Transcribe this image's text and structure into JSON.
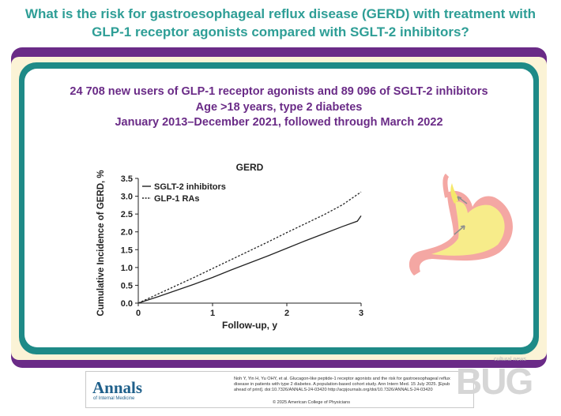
{
  "header": {
    "title_line1": "What is the risk for gastroesophageal reflux disease (GERD) with treatment with",
    "title_line2": "GLP-1 receptor agonists compared with SGLT-2 inhibitors?"
  },
  "study": {
    "line1": "24 708 new users of GLP-1 receptor agonists and 89 096 of SGLT-2 inhibitors",
    "line2": "Age >18 years, type 2 diabetes",
    "line3": "January 2013–December 2021, followed through March 2022"
  },
  "chart_data": {
    "type": "line",
    "title": "GERD",
    "xlabel": "Follow-up, y",
    "ylabel": "Cumulative Incidence of GERD, %",
    "xlim": [
      0,
      3
    ],
    "ylim": [
      0,
      3.5
    ],
    "x_ticks": [
      "0",
      "1",
      "2",
      "3"
    ],
    "y_ticks": [
      "0.0",
      "0.5",
      "1.0",
      "1.5",
      "2.0",
      "2.5",
      "3.0",
      "3.5"
    ],
    "grid": false,
    "legend_position": "top-left",
    "series": [
      {
        "name": "SGLT-2 inhibitors",
        "style": "solid",
        "x": [
          0,
          0.25,
          0.5,
          0.75,
          1.0,
          1.25,
          1.5,
          1.75,
          2.0,
          2.25,
          2.5,
          2.75,
          2.95,
          3.0
        ],
        "y": [
          0,
          0.17,
          0.35,
          0.53,
          0.72,
          0.93,
          1.13,
          1.33,
          1.54,
          1.75,
          1.95,
          2.15,
          2.3,
          2.45
        ]
      },
      {
        "name": "GLP-1 RAs",
        "style": "dashed",
        "x": [
          0,
          0.25,
          0.5,
          0.75,
          1.0,
          1.25,
          1.5,
          1.75,
          2.0,
          2.25,
          2.5,
          2.75,
          3.0
        ],
        "y": [
          0,
          0.24,
          0.48,
          0.72,
          0.97,
          1.22,
          1.47,
          1.72,
          1.98,
          2.23,
          2.48,
          2.76,
          3.12
        ]
      }
    ]
  },
  "footer": {
    "journal_name": "Annals",
    "journal_sub": "of Internal Medicine",
    "citation": "Noh Y, Yin H, Yu OHY, et al. Glucagon-like peptide-1 receptor agonists and the risk for gastroesophageal reflux disease in patients with type 2 diabetes. A population-based cohort study. Ann Intern Med. 15 July 2025. [Epub ahead of print]. doi:10.7326/ANNALS-24-03420 http://acpjournals.org/doi/10.7326/ANNALS-24-03420",
    "copyright": "© 2025 American College of Physicians"
  },
  "watermark": {
    "sub": "cultural news",
    "main": "BUG"
  },
  "colors": {
    "teal": "#2e9e96",
    "purple": "#6a2b87",
    "frame_teal": "#1e8a87",
    "cream": "#fbf3d6"
  },
  "icons": {
    "illustration": "stomach-reflux-illustration"
  }
}
